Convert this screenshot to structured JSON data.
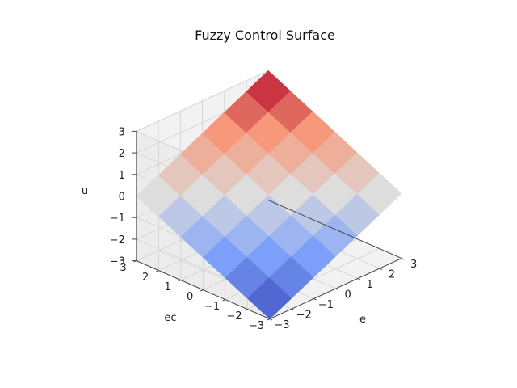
{
  "chart_data": {
    "type": "surface",
    "title": "Fuzzy Control Surface",
    "xlabel": "e",
    "ylabel": "ec",
    "zlabel": "u",
    "x": [
      -3,
      -2,
      -1,
      0,
      1,
      2,
      3
    ],
    "y": [
      -3,
      -2,
      -1,
      0,
      1,
      2,
      3
    ],
    "z": [
      [
        -3.0,
        -2.5,
        -2.0,
        -1.5,
        -1.0,
        -0.5,
        0.0
      ],
      [
        -2.5,
        -2.0,
        -1.5,
        -1.0,
        -0.5,
        0.0,
        0.5
      ],
      [
        -2.0,
        -1.5,
        -1.0,
        -0.5,
        0.0,
        0.5,
        1.0
      ],
      [
        -1.5,
        -1.0,
        -0.5,
        0.0,
        0.5,
        1.0,
        1.5
      ],
      [
        -1.0,
        -0.5,
        0.0,
        0.5,
        1.0,
        1.5,
        2.0
      ],
      [
        -0.5,
        0.0,
        0.5,
        1.0,
        1.5,
        2.0,
        2.5
      ],
      [
        0.0,
        0.5,
        1.0,
        1.5,
        2.0,
        2.5,
        3.0
      ]
    ],
    "xlim": [
      -3,
      3
    ],
    "ylim": [
      -3,
      3
    ],
    "zlim": [
      -3,
      3
    ],
    "xticks": [
      "−3",
      "−2",
      "−1",
      "0",
      "1",
      "2",
      "3"
    ],
    "yticks": [
      "−3",
      "−2",
      "−1",
      "0",
      "1",
      "2",
      "3"
    ],
    "zticks": [
      "−3",
      "−2",
      "−1",
      "0",
      "1",
      "2",
      "3"
    ],
    "colormap": "coolwarm",
    "grid": true
  }
}
